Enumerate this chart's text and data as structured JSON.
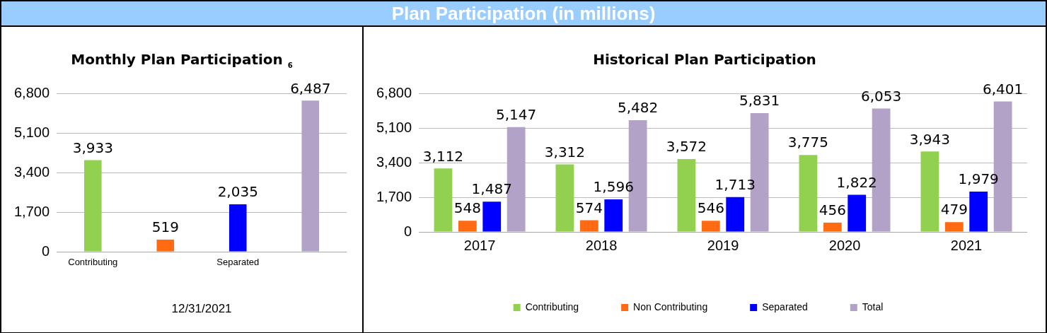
{
  "chart_data": [
    {
      "type": "other",
      "title": "Plan Participation (in millions)"
    },
    {
      "type": "bar",
      "title": "Monthly Plan Participation $_{6}$",
      "xlabel": "12/31/2021",
      "categories": [
        "Contributing",
        null,
        "Separated",
        null
      ],
      "values": [
        3933,
        519,
        2035,
        6487
      ],
      "value_labels": [
        "3,933",
        "519",
        "2,035",
        "6,487"
      ],
      "colors": [
        "#92d050",
        "#ff6a13",
        "#0000ff",
        "#b3a2c7"
      ],
      "ylim": [
        0,
        6800
      ],
      "yticks": [
        0,
        {
          "value": 1700,
          "label": "1,700"
        },
        {
          "value": 3400,
          "label": "3,400"
        },
        {
          "value": 5100,
          "label": "5,100"
        },
        {
          "value": 6800,
          "label": "6,800"
        }
      ],
      "grid": "y"
    },
    {
      "type": "bar",
      "title": "Historical Plan Participation",
      "categories": [
        "2017",
        "2018",
        "2019",
        "2020",
        "2021"
      ],
      "series": [
        {
          "name": "Contributing",
          "color": "#92d050",
          "values": [
            3112,
            3312,
            3572,
            3775,
            3943
          ],
          "value_labels": [
            "3,112",
            "3,312",
            "3,572",
            "3,775",
            "3,943"
          ]
        },
        {
          "name": "Non Contributing",
          "color": "#ff6a13",
          "values": [
            548,
            574,
            546,
            456,
            479
          ],
          "value_labels": [
            "548",
            "574",
            "546",
            "456",
            "479"
          ]
        },
        {
          "name": "Separated",
          "color": "#0000ff",
          "values": [
            1487,
            1596,
            1713,
            1822,
            1979
          ],
          "value_labels": [
            "1,487",
            "1,596",
            "1,713",
            "1,822",
            "1,979"
          ]
        },
        {
          "name": "Total",
          "color": "#b3a2c7",
          "values": [
            5147,
            5482,
            5831,
            6053,
            6401
          ],
          "value_labels": [
            "5,147",
            "5,482",
            "5,831",
            "6,053",
            "6,401"
          ]
        }
      ],
      "ylim": [
        0,
        6800
      ],
      "yticks": [
        0,
        {
          "value": 1700,
          "label": "1,700"
        },
        {
          "value": 3400,
          "label": "3,400"
        },
        {
          "value": 5100,
          "label": "5,100"
        },
        {
          "value": 6800,
          "label": "6,800"
        }
      ],
      "grid": "y",
      "legend": "bottom"
    }
  ]
}
